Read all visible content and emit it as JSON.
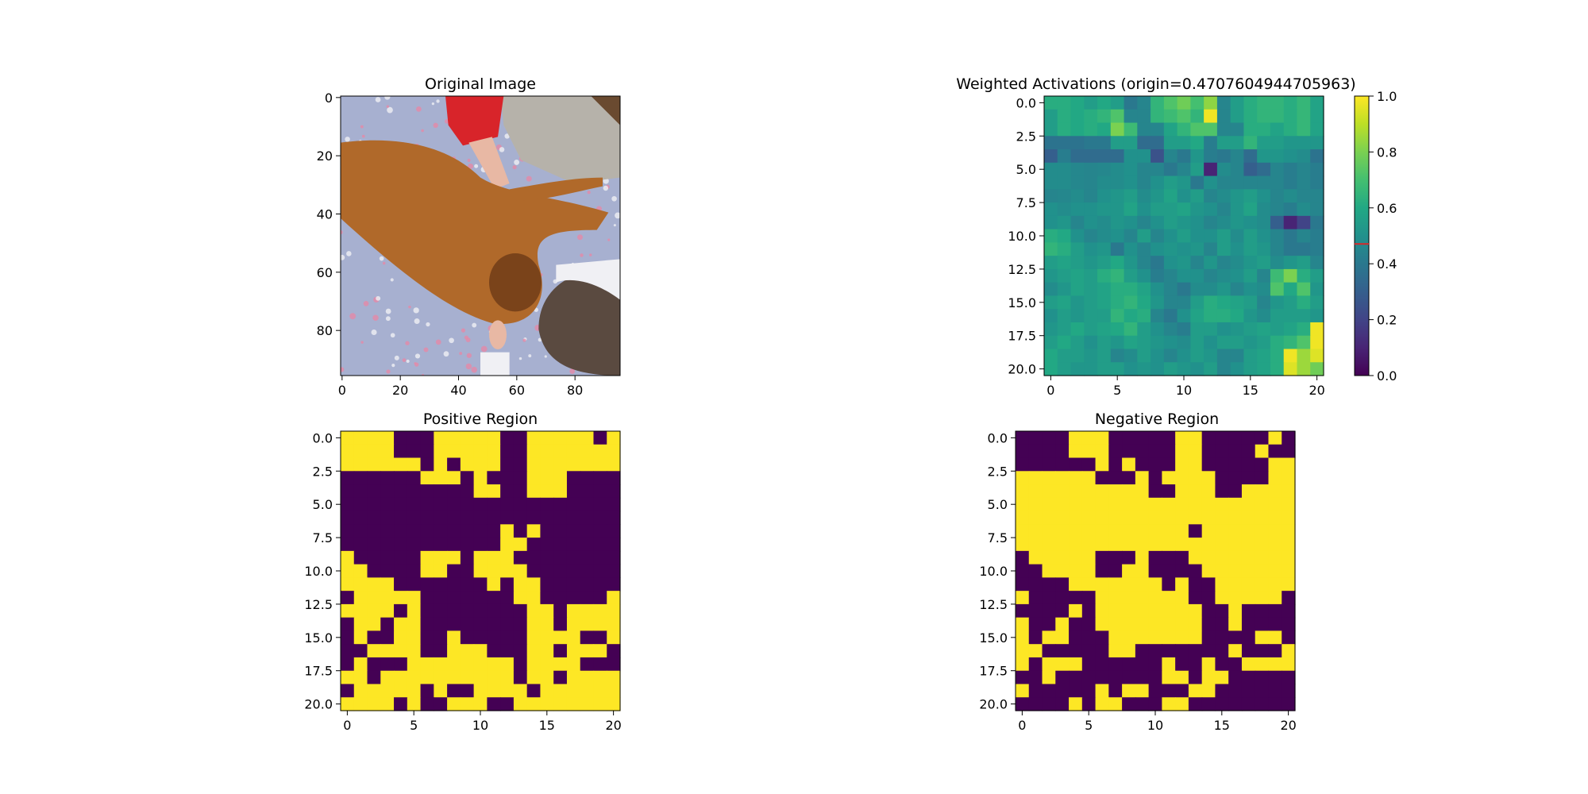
{
  "figure": {
    "panels": [
      {
        "id": "original",
        "title": "Original Image"
      },
      {
        "id": "weighted",
        "title": "Weighted Activations (origin=0.4707604944705963)"
      },
      {
        "id": "positive",
        "title": "Positive Region"
      },
      {
        "id": "negative",
        "title": "Negative Region"
      }
    ]
  },
  "chart_data": [
    {
      "type": "image",
      "title": "Original Image",
      "content": "photo of a brown dog lying on a floral bedspread beside a child",
      "xticks": [
        0,
        20,
        40,
        60,
        80
      ],
      "yticks": [
        0,
        20,
        40,
        60,
        80
      ],
      "extent": [
        -0.5,
        95.5
      ],
      "photo_colors": {
        "bed": "#a7b0d0",
        "dog": "#b0692a",
        "dog_dark": "#7a431a",
        "red_sleeve": "#d8242a",
        "grey_cloth": "#b6b2aa",
        "hair": "#5a4a40",
        "skin": "#e8b8a4",
        "white": "#f0f0f4",
        "pink": "#e58aa8"
      }
    },
    {
      "type": "heatmap",
      "title": "Weighted Activations (origin=0.4707604944705963)",
      "colormap": "viridis",
      "vmin": 0.0,
      "vmax": 1.0,
      "origin_value": 0.4707604944705963,
      "origin_marker_color": "#d62728",
      "colorbar_ticks": [
        "0.0",
        "0.2",
        "0.4",
        "0.6",
        "0.8",
        "1.0"
      ],
      "xticks": [
        0,
        5,
        10,
        15,
        20
      ],
      "yticks": [
        "0.0",
        "2.5",
        "5.0",
        "7.5",
        "10.0",
        "12.5",
        "15.0",
        "17.5",
        "20.0"
      ],
      "rows": 21,
      "cols": 21,
      "values": [
        [
          0.62,
          0.62,
          0.6,
          0.55,
          0.6,
          0.55,
          0.4,
          0.45,
          0.65,
          0.72,
          0.78,
          0.7,
          0.83,
          0.45,
          0.55,
          0.62,
          0.65,
          0.65,
          0.62,
          0.66,
          0.58
        ],
        [
          0.55,
          0.62,
          0.6,
          0.62,
          0.65,
          0.72,
          0.45,
          0.45,
          0.65,
          0.68,
          0.72,
          0.65,
          0.98,
          0.45,
          0.55,
          0.62,
          0.65,
          0.65,
          0.62,
          0.66,
          0.58
        ],
        [
          0.55,
          0.62,
          0.6,
          0.62,
          0.6,
          0.8,
          0.68,
          0.45,
          0.45,
          0.58,
          0.65,
          0.72,
          0.72,
          0.45,
          0.45,
          0.62,
          0.62,
          0.58,
          0.62,
          0.66,
          0.58
        ],
        [
          0.38,
          0.38,
          0.38,
          0.4,
          0.4,
          0.55,
          0.55,
          0.35,
          0.35,
          0.55,
          0.55,
          0.6,
          0.42,
          0.55,
          0.55,
          0.65,
          0.55,
          0.55,
          0.52,
          0.52,
          0.52
        ],
        [
          0.3,
          0.42,
          0.35,
          0.35,
          0.35,
          0.35,
          0.5,
          0.5,
          0.25,
          0.45,
          0.4,
          0.52,
          0.42,
          0.4,
          0.45,
          0.35,
          0.52,
          0.52,
          0.5,
          0.48,
          0.38
        ],
        [
          0.48,
          0.48,
          0.46,
          0.45,
          0.46,
          0.48,
          0.5,
          0.45,
          0.45,
          0.4,
          0.45,
          0.55,
          0.1,
          0.48,
          0.45,
          0.3,
          0.35,
          0.45,
          0.42,
          0.45,
          0.42
        ],
        [
          0.48,
          0.48,
          0.46,
          0.45,
          0.48,
          0.48,
          0.5,
          0.45,
          0.5,
          0.55,
          0.52,
          0.4,
          0.5,
          0.45,
          0.45,
          0.45,
          0.45,
          0.45,
          0.42,
          0.45,
          0.42
        ],
        [
          0.45,
          0.46,
          0.48,
          0.45,
          0.5,
          0.52,
          0.55,
          0.48,
          0.52,
          0.58,
          0.5,
          0.55,
          0.45,
          0.48,
          0.52,
          0.55,
          0.5,
          0.45,
          0.48,
          0.45,
          0.45
        ],
        [
          0.5,
          0.48,
          0.5,
          0.5,
          0.52,
          0.52,
          0.58,
          0.5,
          0.55,
          0.55,
          0.58,
          0.52,
          0.5,
          0.45,
          0.52,
          0.58,
          0.48,
          0.45,
          0.42,
          0.48,
          0.45
        ],
        [
          0.5,
          0.52,
          0.45,
          0.5,
          0.48,
          0.52,
          0.5,
          0.45,
          0.5,
          0.55,
          0.52,
          0.5,
          0.45,
          0.48,
          0.52,
          0.5,
          0.48,
          0.3,
          0.1,
          0.2,
          0.4
        ],
        [
          0.62,
          0.6,
          0.5,
          0.45,
          0.48,
          0.5,
          0.45,
          0.55,
          0.45,
          0.5,
          0.55,
          0.5,
          0.5,
          0.55,
          0.48,
          0.55,
          0.5,
          0.45,
          0.4,
          0.45,
          0.42
        ],
        [
          0.65,
          0.62,
          0.55,
          0.5,
          0.52,
          0.4,
          0.5,
          0.45,
          0.5,
          0.52,
          0.5,
          0.52,
          0.45,
          0.55,
          0.5,
          0.55,
          0.52,
          0.45,
          0.4,
          0.4,
          0.42
        ],
        [
          0.55,
          0.58,
          0.55,
          0.52,
          0.55,
          0.6,
          0.52,
          0.45,
          0.4,
          0.5,
          0.52,
          0.45,
          0.52,
          0.45,
          0.48,
          0.52,
          0.55,
          0.48,
          0.52,
          0.55,
          0.45
        ],
        [
          0.52,
          0.55,
          0.58,
          0.55,
          0.62,
          0.65,
          0.55,
          0.5,
          0.42,
          0.45,
          0.5,
          0.5,
          0.45,
          0.48,
          0.5,
          0.55,
          0.45,
          0.68,
          0.8,
          0.62,
          0.55
        ],
        [
          0.48,
          0.52,
          0.58,
          0.55,
          0.58,
          0.62,
          0.62,
          0.58,
          0.5,
          0.45,
          0.4,
          0.48,
          0.48,
          0.52,
          0.45,
          0.5,
          0.48,
          0.72,
          0.6,
          0.72,
          0.52
        ],
        [
          0.55,
          0.58,
          0.52,
          0.55,
          0.58,
          0.62,
          0.65,
          0.6,
          0.52,
          0.45,
          0.45,
          0.55,
          0.62,
          0.6,
          0.58,
          0.55,
          0.45,
          0.52,
          0.55,
          0.62,
          0.55
        ],
        [
          0.5,
          0.55,
          0.52,
          0.55,
          0.55,
          0.65,
          0.6,
          0.62,
          0.45,
          0.4,
          0.5,
          0.58,
          0.62,
          0.62,
          0.6,
          0.52,
          0.48,
          0.55,
          0.55,
          0.55,
          0.52
        ],
        [
          0.52,
          0.55,
          0.6,
          0.55,
          0.58,
          0.6,
          0.65,
          0.55,
          0.5,
          0.45,
          0.42,
          0.55,
          0.55,
          0.5,
          0.52,
          0.55,
          0.58,
          0.55,
          0.58,
          0.62,
          0.98
        ],
        [
          0.55,
          0.6,
          0.55,
          0.5,
          0.55,
          0.52,
          0.58,
          0.55,
          0.52,
          0.5,
          0.48,
          0.55,
          0.5,
          0.55,
          0.55,
          0.52,
          0.55,
          0.62,
          0.65,
          0.72,
          0.98
        ],
        [
          0.6,
          0.55,
          0.55,
          0.52,
          0.55,
          0.45,
          0.48,
          0.55,
          0.5,
          0.45,
          0.5,
          0.55,
          0.52,
          0.45,
          0.45,
          0.55,
          0.58,
          0.62,
          0.98,
          0.85,
          0.95
        ],
        [
          0.6,
          0.55,
          0.52,
          0.52,
          0.55,
          0.55,
          0.5,
          0.52,
          0.5,
          0.55,
          0.52,
          0.5,
          0.55,
          0.45,
          0.5,
          0.55,
          0.58,
          0.62,
          0.95,
          0.85,
          0.78
        ]
      ]
    },
    {
      "type": "heatmap",
      "title": "Positive Region",
      "colormap": "viridis-binary",
      "colors": {
        "on": "#fde725",
        "off": "#440154"
      },
      "xticks": [
        0,
        5,
        10,
        15,
        20
      ],
      "yticks": [
        "0.0",
        "2.5",
        "5.0",
        "7.5",
        "10.0",
        "12.5",
        "15.0",
        "17.5",
        "20.0"
      ],
      "rows": 21,
      "cols": 21,
      "values": [
        "111100011111001111101",
        "111100011111001111111",
        "111111010111001111111",
        "000000111010001110000",
        "000000000011001110000",
        "000000000000000000000",
        "000000000000000000000",
        "000000000000101000000",
        "000000000000110000000",
        "100000111011100000000",
        "110000110011110000000",
        "111100000001011000000",
        "011111000000011000001",
        "111101000000001101111",
        "011011000000001101111",
        "010011001000001111001",
        "001111001110001101110",
        "010001111111101111000",
        "110111111111101101111",
        "011111010011110111111",
        "111101001110011111111"
      ]
    },
    {
      "type": "heatmap",
      "title": "Negative Region",
      "colormap": "viridis-binary",
      "colors": {
        "on": "#fde725",
        "off": "#440154"
      },
      "xticks": [
        0,
        5,
        10,
        15,
        20
      ],
      "yticks": [
        "0.0",
        "2.5",
        "5.0",
        "7.5",
        "10.0",
        "12.5",
        "15.0",
        "17.5",
        "20.0"
      ],
      "rows": 21,
      "cols": 21,
      "values": [
        "000011100000110000010",
        "000011100000110000100",
        "000000101000110000011",
        "111111000101111000011",
        "111111111100111001111",
        "111111111111111111111",
        "111111111111111111111",
        "111111111111101111111",
        "111111111111111111111",
        "011111000100011111111",
        "001111001100001111111",
        "000011111110100111111",
        "100000111111100111110",
        "000010111111110010000",
        "100100111111110010000",
        "101100011111110000110",
        "110000011000000010001",
        "101110000001001001111",
        "001000000001101100000",
        "100000101100011000000",
        "000010110001100000000"
      ]
    }
  ]
}
